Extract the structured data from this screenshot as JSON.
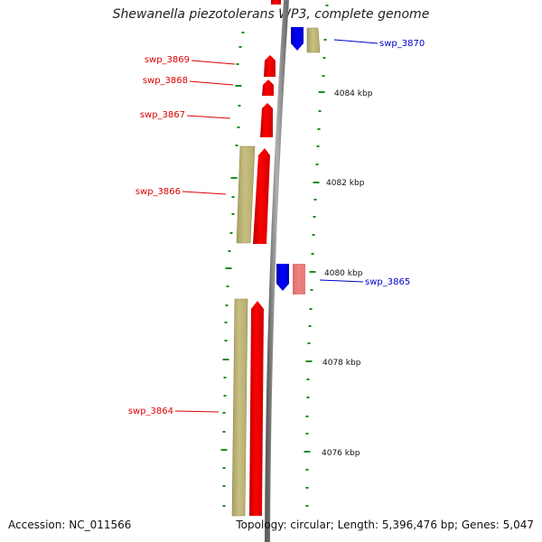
{
  "title": "Shewanella piezotolerans WP3, complete genome",
  "footer": {
    "accession": "Accession: NC_011566",
    "summary": "Topology: circular; Length: 5,396,476 bp; Genes: 5,047"
  },
  "colors": {
    "forward_cds": "#ff0000",
    "reverse_cds": "#0000ff",
    "pale_forward_cds": "#f08080",
    "gene_bar": "#c8bf82",
    "backbone": "#808080",
    "tick": "#1a8c1a",
    "label_red": "#dd0000",
    "label_blue": "#0000cc"
  },
  "genes": [
    {
      "name": "swp_3870",
      "strand": "reverse",
      "color": "label_blue"
    },
    {
      "name": "swp_3869",
      "strand": "forward",
      "color": "label_red"
    },
    {
      "name": "swp_3868",
      "strand": "forward",
      "color": "label_red"
    },
    {
      "name": "swp_3867",
      "strand": "forward",
      "color": "label_red"
    },
    {
      "name": "swp_3866",
      "strand": "forward",
      "color": "label_red"
    },
    {
      "name": "swp_3865",
      "strand": "reverse",
      "color": "label_blue"
    },
    {
      "name": "swp_3864",
      "strand": "forward",
      "color": "label_red"
    }
  ],
  "scale_labels": [
    "4084 kbp",
    "4082 kbp",
    "4080 kbp",
    "4078 kbp",
    "4076 kbp"
  ]
}
